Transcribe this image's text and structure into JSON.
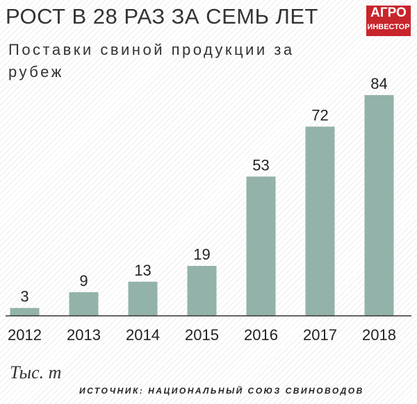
{
  "chart_data": {
    "type": "bar",
    "title": "РОСТ В 28 РАЗ ЗА СЕМЬ ЛЕТ",
    "subtitle": "Поставки свиной продукции за рубеж",
    "logo": [
      "АГРО",
      "ИНВЕСТОР"
    ],
    "unit": "Тыс. т",
    "source": "ИСТОЧНИК: НАЦИОНАЛЬНЫЙ СОЮЗ СВИНОВОДОВ",
    "categories": [
      "2012",
      "2013",
      "2014",
      "2015",
      "2016",
      "2017",
      "2018"
    ],
    "values": [
      3,
      9,
      13,
      19,
      53,
      72,
      84
    ],
    "color": "#93b2a9"
  }
}
